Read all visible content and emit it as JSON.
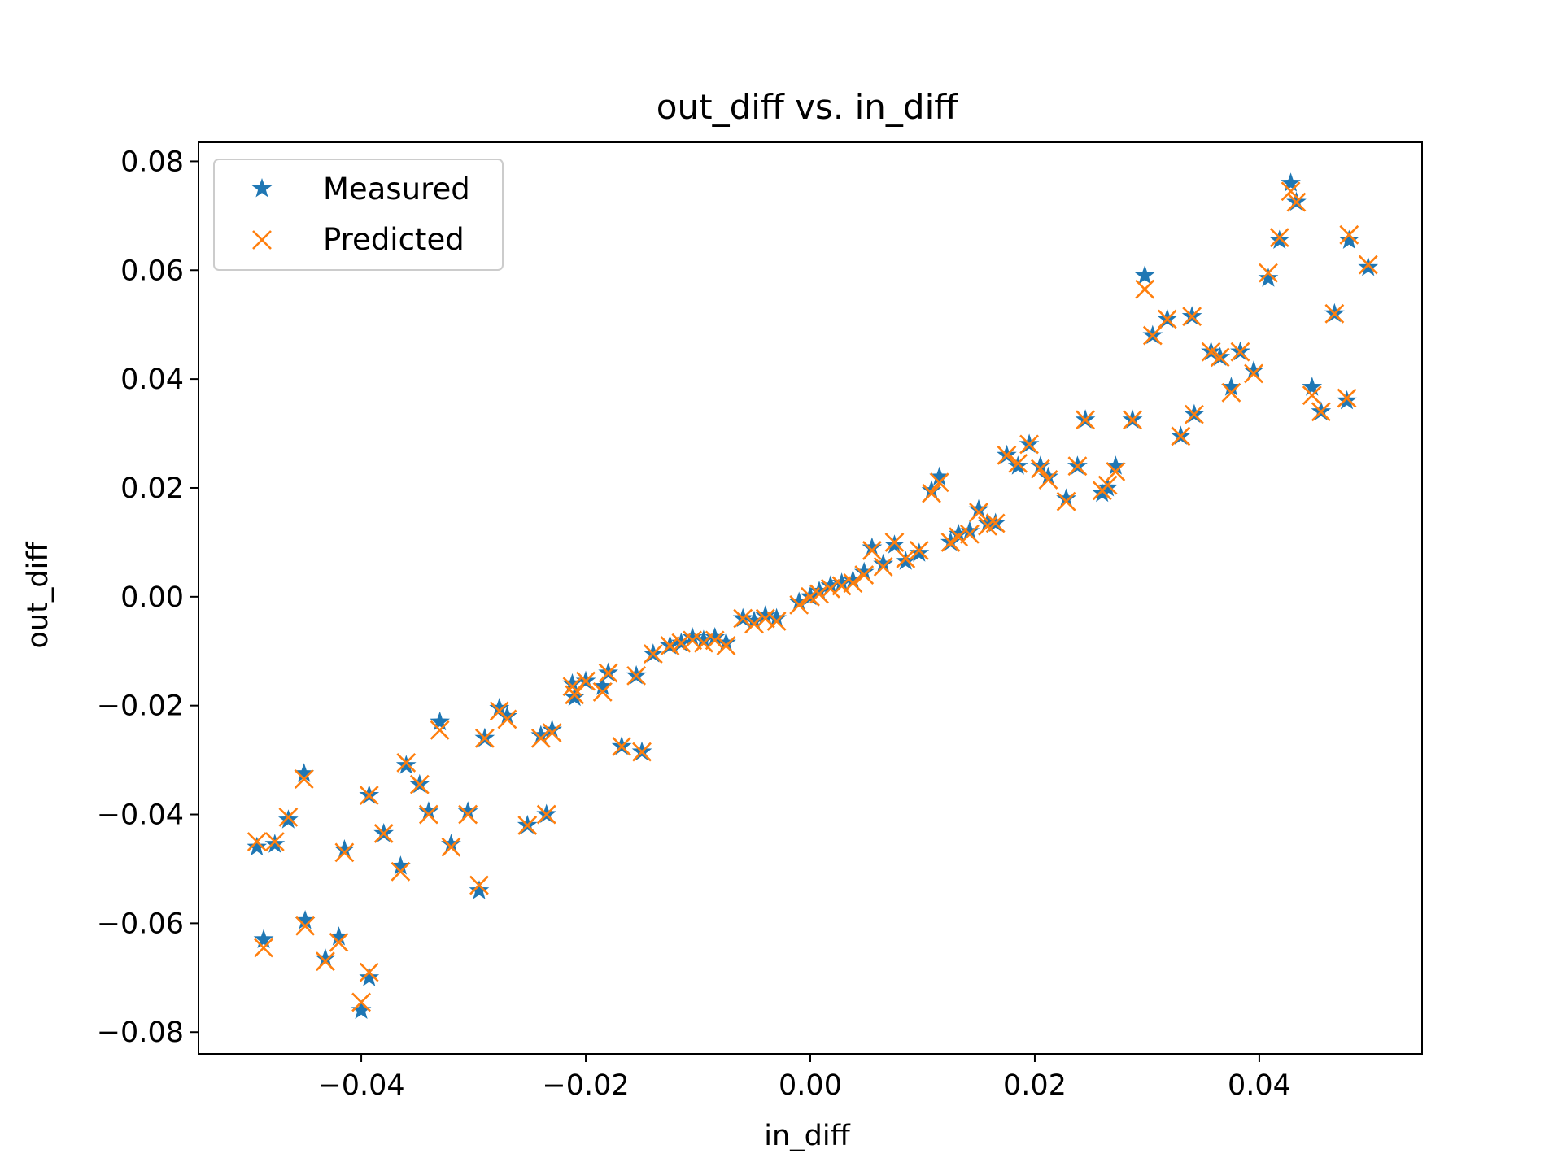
{
  "chart_data": {
    "type": "scatter",
    "title": "out_diff vs. in_diff",
    "xlabel": "in_diff",
    "ylabel": "out_diff",
    "xlim": [
      -0.0545,
      0.0545
    ],
    "ylim": [
      -0.084,
      0.0835
    ],
    "xticks": [
      -0.04,
      -0.02,
      0.0,
      0.02,
      0.04
    ],
    "xtick_labels": [
      "−0.04",
      "−0.02",
      "0.00",
      "0.02",
      "0.04"
    ],
    "yticks": [
      -0.08,
      -0.06,
      -0.04,
      -0.02,
      0.0,
      0.02,
      0.04,
      0.06,
      0.08
    ],
    "ytick_labels": [
      "−0.08",
      "−0.06",
      "−0.04",
      "−0.02",
      "0.00",
      "0.02",
      "0.04",
      "0.06",
      "0.08"
    ],
    "grid": false,
    "legend_position": "top-left",
    "series": [
      {
        "name": "Measured",
        "marker": "star",
        "color": "#1f77b4",
        "points": [
          [
            -0.0493,
            -0.046
          ],
          [
            -0.0477,
            -0.0455
          ],
          [
            -0.0465,
            -0.041
          ],
          [
            -0.0451,
            -0.0325
          ],
          [
            -0.0487,
            -0.063
          ],
          [
            -0.045,
            -0.0595
          ],
          [
            -0.0432,
            -0.0665
          ],
          [
            -0.042,
            -0.0625
          ],
          [
            -0.0415,
            -0.0465
          ],
          [
            -0.04,
            -0.076
          ],
          [
            -0.0393,
            -0.07
          ],
          [
            -0.0393,
            -0.0365
          ],
          [
            -0.038,
            -0.0435
          ],
          [
            -0.0365,
            -0.0495
          ],
          [
            -0.036,
            -0.031
          ],
          [
            -0.0348,
            -0.0345
          ],
          [
            -0.034,
            -0.0395
          ],
          [
            -0.033,
            -0.023
          ],
          [
            -0.032,
            -0.0455
          ],
          [
            -0.0305,
            -0.0395
          ],
          [
            -0.0295,
            -0.054
          ],
          [
            -0.029,
            -0.026
          ],
          [
            -0.0277,
            -0.0205
          ],
          [
            -0.027,
            -0.022
          ],
          [
            -0.0252,
            -0.042
          ],
          [
            -0.024,
            -0.0255
          ],
          [
            -0.0235,
            -0.04
          ],
          [
            -0.023,
            -0.0245
          ],
          [
            -0.0212,
            -0.016
          ],
          [
            -0.021,
            -0.0185
          ],
          [
            -0.02,
            -0.0155
          ],
          [
            -0.0185,
            -0.0165
          ],
          [
            -0.018,
            -0.014
          ],
          [
            -0.0168,
            -0.0275
          ],
          [
            -0.0155,
            -0.0145
          ],
          [
            -0.015,
            -0.0285
          ],
          [
            -0.014,
            -0.0105
          ],
          [
            -0.0125,
            -0.009
          ],
          [
            -0.0115,
            -0.0085
          ],
          [
            -0.0105,
            -0.0075
          ],
          [
            -0.0095,
            -0.008
          ],
          [
            -0.0085,
            -0.0075
          ],
          [
            -0.0075,
            -0.0085
          ],
          [
            -0.006,
            -0.004
          ],
          [
            -0.005,
            -0.0045
          ],
          [
            -0.004,
            -0.0035
          ],
          [
            -0.003,
            -0.004
          ],
          [
            -0.001,
            -0.001
          ],
          [
            0.0,
            0.0
          ],
          [
            0.0008,
            0.001
          ],
          [
            0.0018,
            0.002
          ],
          [
            0.0028,
            0.0025
          ],
          [
            0.0038,
            0.003
          ],
          [
            0.0048,
            0.0045
          ],
          [
            0.0055,
            0.009
          ],
          [
            0.0065,
            0.006
          ],
          [
            0.0075,
            0.0095
          ],
          [
            0.0085,
            0.0065
          ],
          [
            0.0097,
            0.008
          ],
          [
            0.0108,
            0.0195
          ],
          [
            0.0115,
            0.022
          ],
          [
            0.0125,
            0.01
          ],
          [
            0.0132,
            0.0115
          ],
          [
            0.0142,
            0.012
          ],
          [
            0.015,
            0.016
          ],
          [
            0.0158,
            0.0135
          ],
          [
            0.0165,
            0.0135
          ],
          [
            0.0175,
            0.026
          ],
          [
            0.0185,
            0.024
          ],
          [
            0.0195,
            0.028
          ],
          [
            0.0205,
            0.024
          ],
          [
            0.0212,
            0.022
          ],
          [
            0.0228,
            0.018
          ],
          [
            0.0238,
            0.024
          ],
          [
            0.0245,
            0.0325
          ],
          [
            0.026,
            0.019
          ],
          [
            0.0265,
            0.02
          ],
          [
            0.0272,
            0.024
          ],
          [
            0.0287,
            0.0325
          ],
          [
            0.0298,
            0.059
          ],
          [
            0.0305,
            0.048
          ],
          [
            0.0318,
            0.051
          ],
          [
            0.033,
            0.0295
          ],
          [
            0.034,
            0.0515
          ],
          [
            0.0342,
            0.0335
          ],
          [
            0.0357,
            0.045
          ],
          [
            0.0365,
            0.044
          ],
          [
            0.0375,
            0.0385
          ],
          [
            0.0383,
            0.045
          ],
          [
            0.0395,
            0.0415
          ],
          [
            0.0408,
            0.0585
          ],
          [
            0.0418,
            0.0655
          ],
          [
            0.0428,
            0.076
          ],
          [
            0.0433,
            0.0725
          ],
          [
            0.0447,
            0.0385
          ],
          [
            0.0455,
            0.034
          ],
          [
            0.0467,
            0.052
          ],
          [
            0.0478,
            0.036
          ],
          [
            0.048,
            0.0655
          ],
          [
            0.0497,
            0.0605
          ]
        ]
      },
      {
        "name": "Predicted",
        "marker": "x",
        "color": "#ff7f0e",
        "points": [
          [
            -0.0493,
            -0.045
          ],
          [
            -0.0477,
            -0.045
          ],
          [
            -0.0465,
            -0.0405
          ],
          [
            -0.0451,
            -0.0335
          ],
          [
            -0.0487,
            -0.0645
          ],
          [
            -0.045,
            -0.0605
          ],
          [
            -0.0432,
            -0.067
          ],
          [
            -0.042,
            -0.0635
          ],
          [
            -0.0415,
            -0.047
          ],
          [
            -0.04,
            -0.0745
          ],
          [
            -0.0393,
            -0.069
          ],
          [
            -0.0393,
            -0.0365
          ],
          [
            -0.038,
            -0.0435
          ],
          [
            -0.0365,
            -0.0505
          ],
          [
            -0.036,
            -0.0305
          ],
          [
            -0.0348,
            -0.0345
          ],
          [
            -0.034,
            -0.04
          ],
          [
            -0.033,
            -0.0245
          ],
          [
            -0.032,
            -0.046
          ],
          [
            -0.0305,
            -0.04
          ],
          [
            -0.0295,
            -0.053
          ],
          [
            -0.029,
            -0.026
          ],
          [
            -0.0277,
            -0.021
          ],
          [
            -0.027,
            -0.0225
          ],
          [
            -0.0252,
            -0.042
          ],
          [
            -0.024,
            -0.026
          ],
          [
            -0.0235,
            -0.04
          ],
          [
            -0.023,
            -0.025
          ],
          [
            -0.0212,
            -0.0165
          ],
          [
            -0.021,
            -0.018
          ],
          [
            -0.02,
            -0.0155
          ],
          [
            -0.0185,
            -0.0175
          ],
          [
            -0.018,
            -0.014
          ],
          [
            -0.0168,
            -0.0275
          ],
          [
            -0.0155,
            -0.0145
          ],
          [
            -0.015,
            -0.0285
          ],
          [
            -0.014,
            -0.0105
          ],
          [
            -0.0125,
            -0.009
          ],
          [
            -0.0115,
            -0.0085
          ],
          [
            -0.0105,
            -0.008
          ],
          [
            -0.0095,
            -0.0085
          ],
          [
            -0.0085,
            -0.008
          ],
          [
            -0.0075,
            -0.009
          ],
          [
            -0.006,
            -0.004
          ],
          [
            -0.005,
            -0.005
          ],
          [
            -0.004,
            -0.004
          ],
          [
            -0.003,
            -0.0045
          ],
          [
            -0.001,
            -0.0015
          ],
          [
            0.0,
            0.0
          ],
          [
            0.0008,
            0.0005
          ],
          [
            0.0018,
            0.0015
          ],
          [
            0.0028,
            0.002
          ],
          [
            0.0038,
            0.0025
          ],
          [
            0.0048,
            0.004
          ],
          [
            0.0055,
            0.0085
          ],
          [
            0.0065,
            0.0055
          ],
          [
            0.0075,
            0.01
          ],
          [
            0.0085,
            0.007
          ],
          [
            0.0097,
            0.0085
          ],
          [
            0.0108,
            0.019
          ],
          [
            0.0115,
            0.021
          ],
          [
            0.0125,
            0.01
          ],
          [
            0.0132,
            0.011
          ],
          [
            0.0142,
            0.0115
          ],
          [
            0.015,
            0.0155
          ],
          [
            0.0158,
            0.013
          ],
          [
            0.0165,
            0.0135
          ],
          [
            0.0175,
            0.026
          ],
          [
            0.0185,
            0.0245
          ],
          [
            0.0195,
            0.028
          ],
          [
            0.0205,
            0.0235
          ],
          [
            0.0212,
            0.0215
          ],
          [
            0.0228,
            0.0175
          ],
          [
            0.0238,
            0.024
          ],
          [
            0.0245,
            0.0325
          ],
          [
            0.026,
            0.0195
          ],
          [
            0.0265,
            0.0205
          ],
          [
            0.0272,
            0.023
          ],
          [
            0.0287,
            0.0325
          ],
          [
            0.0298,
            0.0565
          ],
          [
            0.0305,
            0.048
          ],
          [
            0.0318,
            0.051
          ],
          [
            0.033,
            0.0295
          ],
          [
            0.034,
            0.0515
          ],
          [
            0.0342,
            0.0335
          ],
          [
            0.0357,
            0.045
          ],
          [
            0.0365,
            0.044
          ],
          [
            0.0375,
            0.0375
          ],
          [
            0.0383,
            0.045
          ],
          [
            0.0395,
            0.041
          ],
          [
            0.0408,
            0.0595
          ],
          [
            0.0418,
            0.066
          ],
          [
            0.0428,
            0.0745
          ],
          [
            0.0433,
            0.0725
          ],
          [
            0.0447,
            0.037
          ],
          [
            0.0455,
            0.034
          ],
          [
            0.0467,
            0.052
          ],
          [
            0.0478,
            0.0365
          ],
          [
            0.048,
            0.0665
          ],
          [
            0.0497,
            0.061
          ]
        ]
      }
    ]
  }
}
